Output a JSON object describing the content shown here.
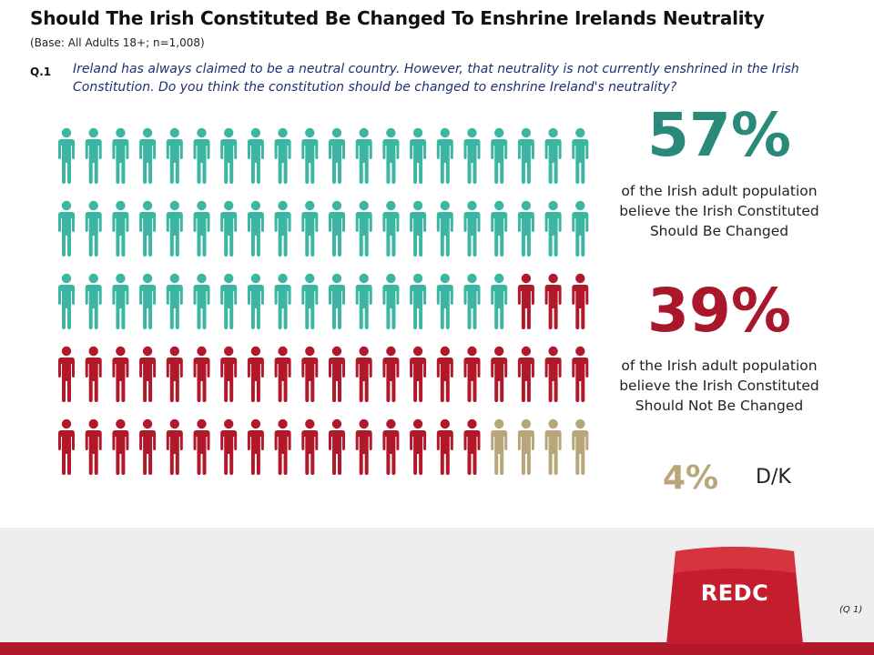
{
  "title": "Should The Irish Constituted Be Changed To Enshrine Irelands Neutrality",
  "base": "(Base: All Adults 18+; n=1,008)",
  "question": {
    "number": "Q.1",
    "text": "Ireland has always claimed to be a neutral country. However, that neutrality is not currently enshrined in the Irish Constitution. Do you think the constitution should be changed to enshrine Ireland's neutrality?"
  },
  "stats": {
    "yes": {
      "pct": "57%",
      "desc": "of the Irish adult population believe the Irish Constituted Should Be Changed"
    },
    "no": {
      "pct": "39%",
      "desc": "of the Irish adult population believe the Irish Constituted Should Not Be Changed"
    },
    "dk": {
      "pct": "4%",
      "label": "D/K"
    }
  },
  "footer": {
    "logo_text": "REDC",
    "ref": "(Q 1)"
  },
  "colors": {
    "yes": "#3cb6a2",
    "no": "#b1192a",
    "dk": "#b6a67a",
    "yes_text": "#2a8a7a",
    "no_text": "#a8172a",
    "dk_text": "#b6a67a"
  },
  "chart_data": {
    "type": "pictograph",
    "categories": [
      "Should Be Changed",
      "Should Not Be Changed",
      "D/K"
    ],
    "values": [
      57,
      39,
      4
    ],
    "units": "%",
    "icon_grid": {
      "rows": 5,
      "cols": 20,
      "order": "row-major"
    }
  }
}
